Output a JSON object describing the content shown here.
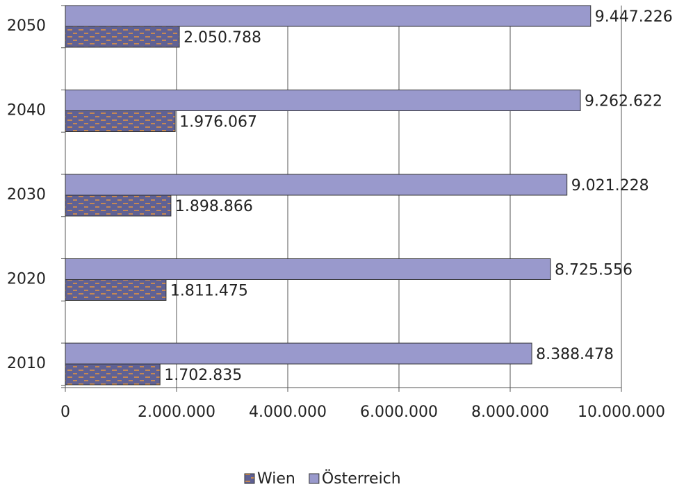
{
  "chart_data": {
    "type": "bar",
    "orientation": "horizontal",
    "categories": [
      "2010",
      "2020",
      "2030",
      "2040",
      "2050"
    ],
    "series": [
      {
        "name": "Wien",
        "color": "#5f6194",
        "values": [
          1702835,
          1811475,
          1898866,
          1976067,
          2050788
        ],
        "value_labels": [
          "1.702.835",
          "1.811.475",
          "1.898.866",
          "1.976.067",
          "2.050.788"
        ]
      },
      {
        "name": "Österreich",
        "color": "#9999cc",
        "values": [
          8388478,
          8725556,
          9021228,
          9262622,
          9447226
        ],
        "value_labels": [
          "8.388.478",
          "8.725.556",
          "9.021.228",
          "9.262.622",
          "9.447.226"
        ]
      }
    ],
    "xlim": [
      0,
      10000000
    ],
    "xticks": [
      0,
      {
        "value": 2000000,
        "label": "2.000.000"
      },
      {
        "value": 4000000,
        "label": "4.000.000"
      },
      {
        "value": 6000000,
        "label": "6.000.000"
      },
      {
        "value": 8000000,
        "label": "8.000.000"
      },
      {
        "value": 10000000,
        "label": "10.000.000"
      }
    ],
    "grid": true
  }
}
